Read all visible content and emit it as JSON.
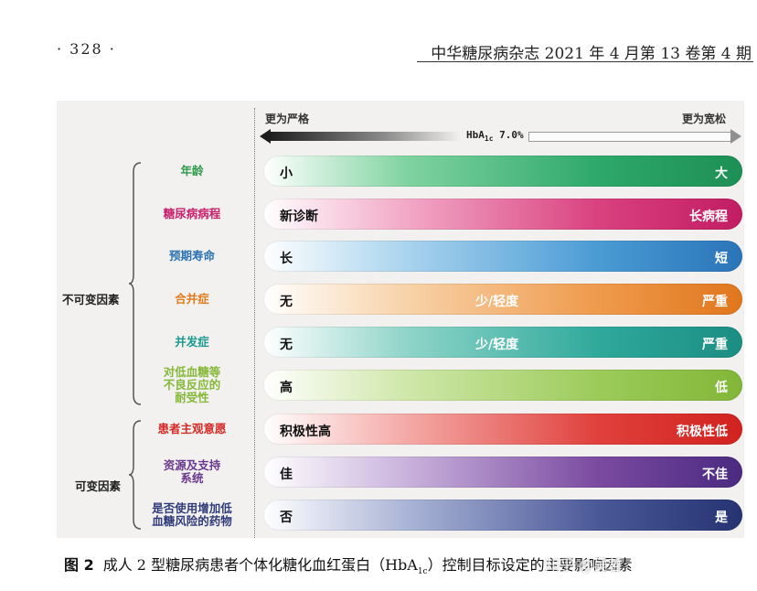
{
  "header": {
    "page_number": "· 328 ·",
    "journal": "中华糖尿病杂志 2021 年 4 月第 13 卷第 4 期"
  },
  "figure": {
    "stricter_label": "更为严格",
    "looser_label": "更为宽松",
    "center_label_main": "HbA",
    "center_label_sub": "1c",
    "center_label_value": "7.0%",
    "groups": [
      {
        "label": "不可变因素"
      },
      {
        "label": "可变因素"
      }
    ],
    "rows": [
      {
        "factor": "年龄",
        "factor_color": "#2e9a4b",
        "left": "小",
        "middle": "",
        "right": "大",
        "gradient": [
          "#ffffff",
          "#7fd3a0",
          "#2ea86b",
          "#1d8f55"
        ]
      },
      {
        "factor": "糖尿病病程",
        "factor_color": "#c9226d",
        "left": "新诊断",
        "middle": "",
        "right": "长病程",
        "gradient": [
          "#ffffff",
          "#f2a8c6",
          "#d9417f",
          "#c21d63"
        ]
      },
      {
        "factor": "预期寿命",
        "factor_color": "#2d73b4",
        "left": "长",
        "middle": "",
        "right": "短",
        "gradient": [
          "#ffffff",
          "#a9d3ee",
          "#4a9bd4",
          "#2a74b8"
        ]
      },
      {
        "factor": "合并症",
        "factor_color": "#e07b1e",
        "left": "无",
        "middle": "少/轻度",
        "right": "严重",
        "gradient": [
          "#ffffff",
          "#f8d2a8",
          "#ef9a4c",
          "#e0761c"
        ]
      },
      {
        "factor": "并发症",
        "factor_color": "#1d9a8f",
        "left": "无",
        "middle": "少/轻度",
        "right": "严重",
        "gradient": [
          "#ffffff",
          "#8fd4c9",
          "#2fa99b",
          "#1b8d82"
        ]
      },
      {
        "factor": "对低血糖等\n不良反应的\n耐受性",
        "factor_color": "#86b83a",
        "left": "高",
        "middle": "",
        "right": "低",
        "gradient": [
          "#ffffff",
          "#cfe7a9",
          "#9ccb5a",
          "#82b637"
        ]
      },
      {
        "factor": "患者主观意愿",
        "factor_color": "#d42a28",
        "left": "积极性高",
        "middle": "",
        "right": "积极性低",
        "gradient": [
          "#ffffff",
          "#f4a9a6",
          "#e0403c",
          "#d1221f"
        ]
      },
      {
        "factor": "资源及支持\n系统",
        "factor_color": "#6a3a8f",
        "left": "佳",
        "middle": "",
        "right": "不佳",
        "gradient": [
          "#ffffff",
          "#c9b2dc",
          "#7a4aa0",
          "#4a2a80"
        ]
      },
      {
        "factor": "是否使用增加低\n血糖风险的药物",
        "factor_color": "#2f3a7a",
        "left": "否",
        "middle": "",
        "right": "是",
        "gradient": [
          "#ffffff",
          "#aab4d6",
          "#4a5898",
          "#263372"
        ]
      }
    ]
  },
  "caption": {
    "figure_number": "图 2",
    "text_before": "成人 2 型糖尿病患者个体化糖化血红蛋白（HbA",
    "text_sub": "1c",
    "text_after": "）控制目标设定的主要影响因素",
    "watermark": "知乎 @吴哲"
  }
}
